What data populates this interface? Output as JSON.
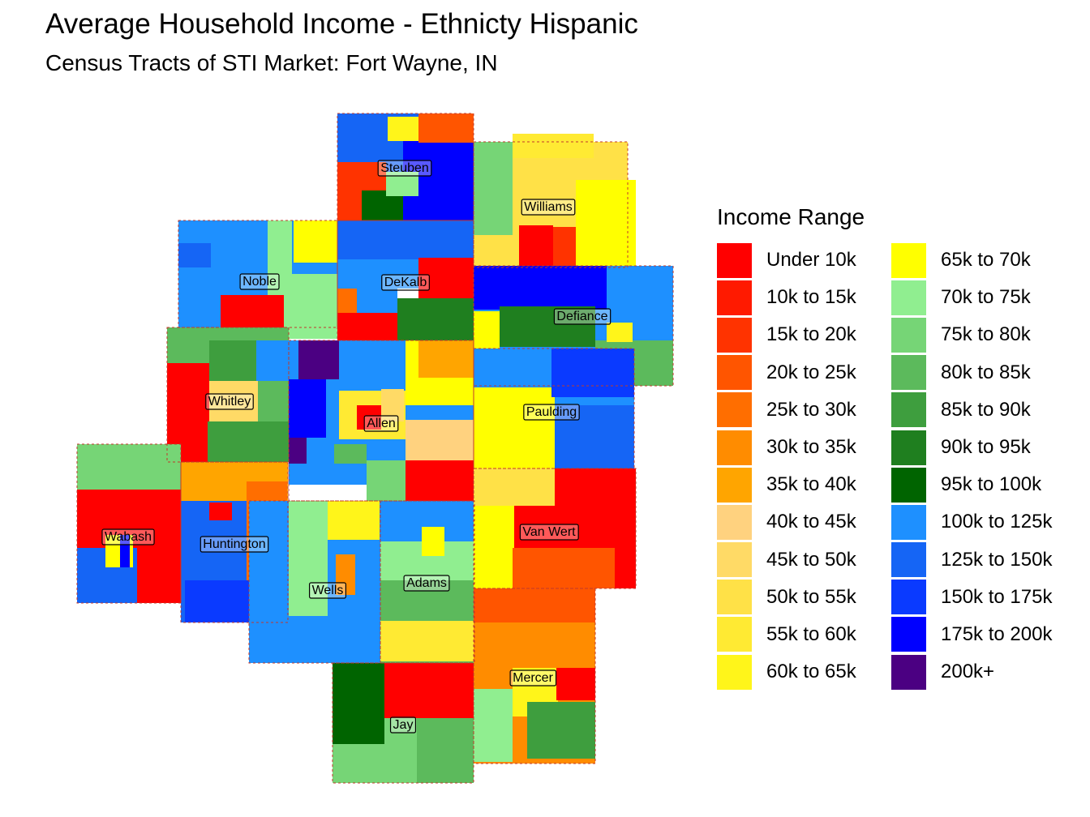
{
  "title": "Average Household Income - Ethnicty Hispanic",
  "subtitle": "Census Tracts of STI Market: Fort Wayne, IN",
  "legend": {
    "title": "Income Range",
    "items": [
      {
        "label": "Under 10k",
        "color": "#FF0000"
      },
      {
        "label": "10k to 15k",
        "color": "#FF1A00"
      },
      {
        "label": "15k to 20k",
        "color": "#FF3300"
      },
      {
        "label": "20k to 25k",
        "color": "#FF5500"
      },
      {
        "label": "25k to 30k",
        "color": "#FF6E00"
      },
      {
        "label": "30k to 35k",
        "color": "#FF8C00"
      },
      {
        "label": "35k to 40k",
        "color": "#FFA500"
      },
      {
        "label": "40k to 45k",
        "color": "#FFD27F"
      },
      {
        "label": "45k to 50k",
        "color": "#FFDA66"
      },
      {
        "label": "50k to 55k",
        "color": "#FFE147"
      },
      {
        "label": "55k to 60k",
        "color": "#FFEA33"
      },
      {
        "label": "60k to 65k",
        "color": "#FFF51A"
      },
      {
        "label": "65k to 70k",
        "color": "#FFFF00"
      },
      {
        "label": "70k to 75k",
        "color": "#90EE90"
      },
      {
        "label": "75k to 80k",
        "color": "#76D576"
      },
      {
        "label": "80k to 85k",
        "color": "#5CBA5C"
      },
      {
        "label": "85k to 90k",
        "color": "#3E9E3E"
      },
      {
        "label": "90k to 95k",
        "color": "#1F7F1F"
      },
      {
        "label": "95k to 100k",
        "color": "#006400"
      },
      {
        "label": "100k to 125k",
        "color": "#1E90FF"
      },
      {
        "label": "125k to 150k",
        "color": "#1565F5"
      },
      {
        "label": "150k to 175k",
        "color": "#0A3AFF"
      },
      {
        "label": "175k to 200k",
        "color": "#0000FF"
      },
      {
        "label": "200k+",
        "color": "#4B0082"
      }
    ]
  },
  "counties": [
    {
      "name": "Steuben",
      "income": "100k to 125k"
    },
    {
      "name": "Williams",
      "income": "60k to 65k"
    },
    {
      "name": "Noble",
      "income": "70k to 75k"
    },
    {
      "name": "DeKalb",
      "income": "125k to 150k"
    },
    {
      "name": "Defiance",
      "income": "175k to 200k"
    },
    {
      "name": "Whitley",
      "income": "Under 10k"
    },
    {
      "name": "Allen",
      "income": "65k to 70k"
    },
    {
      "name": "Paulding",
      "income": "65k to 70k"
    },
    {
      "name": "Wabash",
      "income": "Under 10k"
    },
    {
      "name": "Huntington",
      "income": "125k to 150k"
    },
    {
      "name": "Van Wert",
      "income": "Under 10k"
    },
    {
      "name": "Wells",
      "income": "100k to 125k"
    },
    {
      "name": "Adams",
      "income": "70k to 75k"
    },
    {
      "name": "Mercer",
      "income": "30k to 35k"
    },
    {
      "name": "Jay",
      "income": "95k to 100k"
    }
  ]
}
